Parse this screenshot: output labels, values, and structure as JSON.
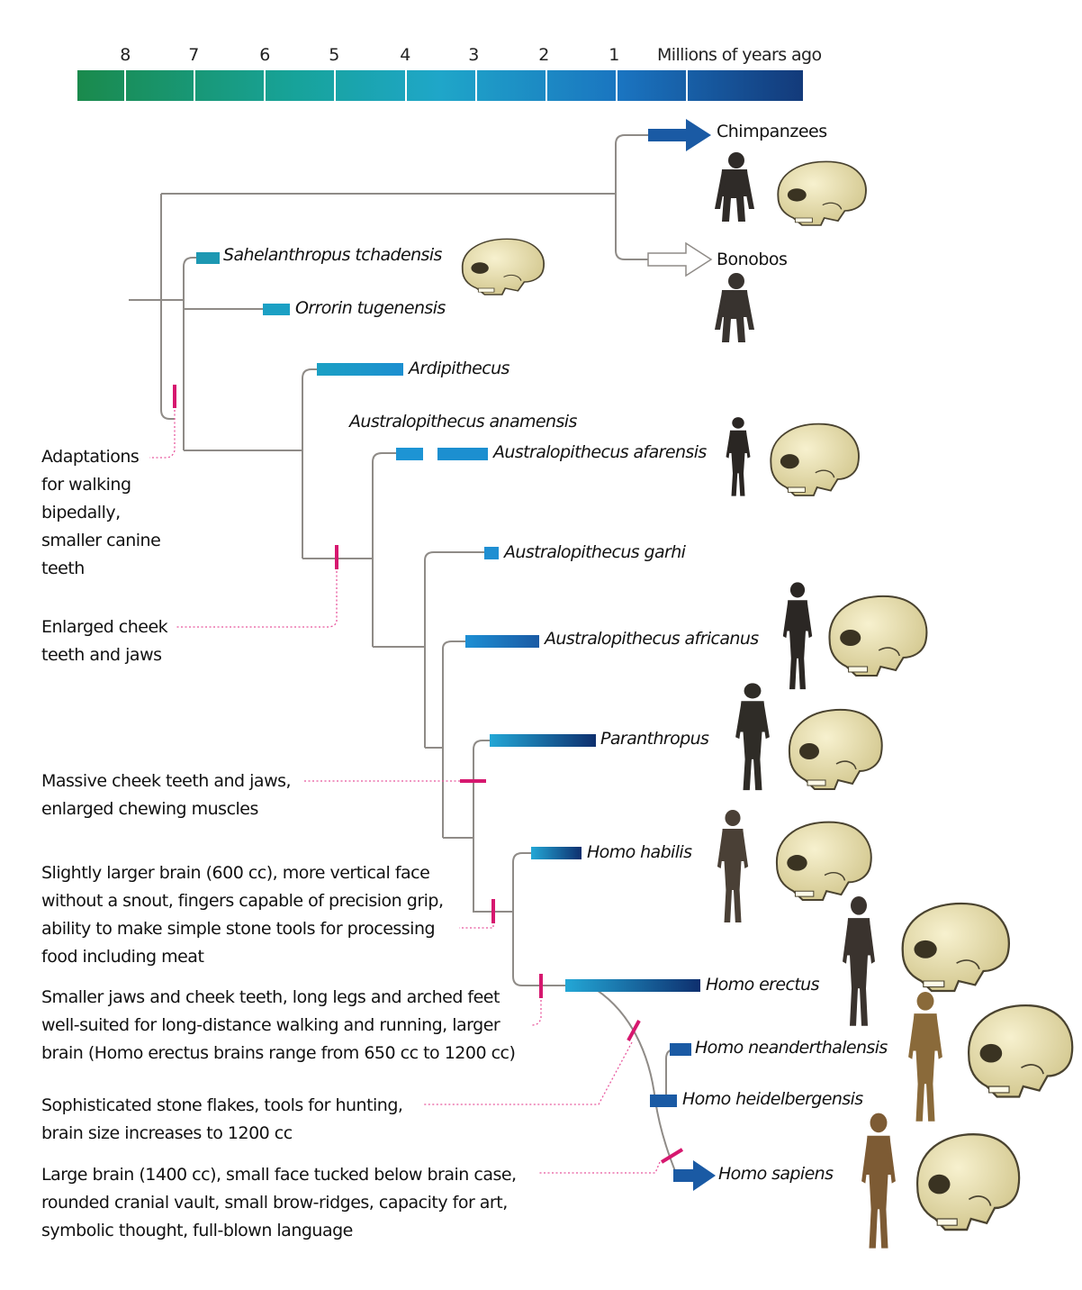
{
  "timescale": {
    "ticks": [
      "8",
      "7",
      "6",
      "5",
      "4",
      "3",
      "2",
      "1"
    ],
    "unit_label": "Millions of years ago",
    "gradient_colors": [
      "#1a8a4c",
      "#17a39a",
      "#1fa6c9",
      "#1a74c0",
      "#133a7a"
    ]
  },
  "living": {
    "chimpanzees": "Chimpanzees",
    "bonobos": "Bonobos"
  },
  "taxa": {
    "sahelanthropus": "Sahelanthropus tchadensis",
    "orrorin": "Orrorin tugenensis",
    "ardipithecus": "Ardipithecus",
    "anamensis": "Australopithecus anamensis",
    "afarensis": "Australopithecus afarensis",
    "garhi": "Australopithecus garhi",
    "africanus": "Australopithecus africanus",
    "paranthropus": "Paranthropus",
    "habilis": "Homo habilis",
    "erectus": "Homo erectus",
    "neanderthalensis": "Homo neanderthalensis",
    "heidelbergensis": "Homo heidelbergensis",
    "sapiens": "Homo sapiens"
  },
  "annotations": {
    "bipedal": "Adaptations\nfor walking\nbipedally,\nsmaller canine\nteeth",
    "cheek": "Enlarged cheek\nteeth and jaws",
    "massive": "Massive cheek teeth and jaws,\nenlarged chewing muscles",
    "habilis_traits": "Slightly larger brain (600 cc), more vertical face\nwithout a snout, fingers capable of precision grip,\nability to make simple stone tools for processing\nfood including meat",
    "erectus_traits": "Smaller jaws and cheek teeth, long legs and arched feet\nwell-suited for long-distance walking and running, larger\nbrain (Homo erectus brains range from 650 cc to 1200 cc)",
    "heidelbergensis_traits": "Sophisticated stone flakes, tools for hunting,\nbrain size increases to 1200 cc",
    "sapiens_traits": "Large brain (1400 cc), small face tucked below brain case,\nrounded cranial vault, small brow-ridges, capacity for art,\nsymbolic thought, full-blown language"
  },
  "colors": {
    "branch_line": "#8f8b87",
    "trait_marker": "#d6186f",
    "skull_fill": "#efe7b8",
    "figure_dark": "#2f2b28",
    "figure_brown": "#8a6a3a"
  }
}
